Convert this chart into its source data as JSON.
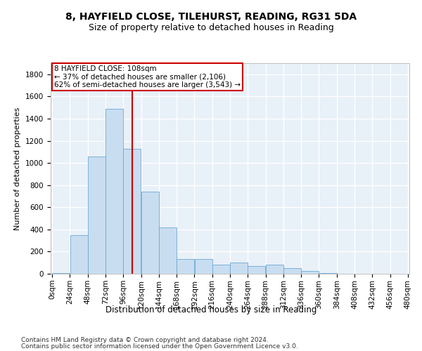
{
  "title1": "8, HAYFIELD CLOSE, TILEHURST, READING, RG31 5DA",
  "title2": "Size of property relative to detached houses in Reading",
  "xlabel": "Distribution of detached houses by size in Reading",
  "ylabel": "Number of detached properties",
  "bar_color": "#c9ddf0",
  "bar_edge_color": "#6aaad4",
  "background_color": "#e8f0f8",
  "grid_color": "#ffffff",
  "annotation_box_color": "#cc0000",
  "vline_color": "#cc0000",
  "vline_x": 108,
  "bin_edges": [
    0,
    24,
    48,
    72,
    96,
    120,
    144,
    168,
    192,
    216,
    240,
    264,
    288,
    312,
    336,
    360,
    384,
    408,
    432,
    456,
    480
  ],
  "bar_heights": [
    5,
    350,
    1060,
    1490,
    1130,
    740,
    420,
    130,
    130,
    80,
    100,
    70,
    85,
    50,
    28,
    5,
    0,
    0,
    0,
    0
  ],
  "annotation_text": "8 HAYFIELD CLOSE: 108sqm\n← 37% of detached houses are smaller (2,106)\n62% of semi-detached houses are larger (3,543) →",
  "footnote1": "Contains HM Land Registry data © Crown copyright and database right 2024.",
  "footnote2": "Contains public sector information licensed under the Open Government Licence v3.0.",
  "ylim": [
    0,
    1900
  ],
  "yticks": [
    0,
    200,
    400,
    600,
    800,
    1000,
    1200,
    1400,
    1600,
    1800
  ],
  "title1_fontsize": 10,
  "title2_fontsize": 9,
  "xlabel_fontsize": 8.5,
  "ylabel_fontsize": 8,
  "tick_fontsize": 7.5,
  "footnote_fontsize": 6.5,
  "ann_fontsize": 7.5
}
